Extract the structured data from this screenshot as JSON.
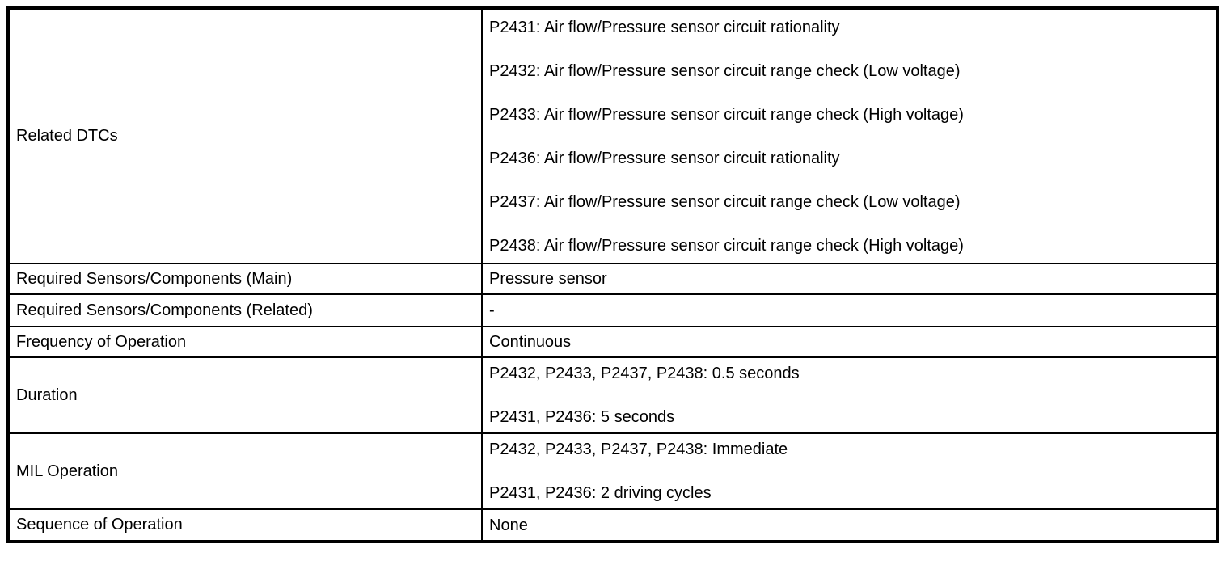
{
  "table": {
    "colors": {
      "border": "#000000",
      "background": "#ffffff",
      "text": "#000000"
    },
    "rows": [
      {
        "label": "Related DTCs",
        "values": [
          "P2431: Air flow/Pressure sensor circuit rationality",
          "P2432: Air flow/Pressure sensor circuit range check (Low voltage)",
          "P2433: Air flow/Pressure sensor circuit range check (High voltage)",
          "P2436: Air flow/Pressure sensor circuit rationality",
          "P2437: Air flow/Pressure sensor circuit range check (Low voltage)",
          "P2438: Air flow/Pressure sensor circuit range check (High voltage)"
        ]
      },
      {
        "label": "Required Sensors/Components (Main)",
        "values": [
          "Pressure sensor"
        ]
      },
      {
        "label": "Required Sensors/Components (Related)",
        "values": [
          "-"
        ]
      },
      {
        "label": "Frequency of Operation",
        "values": [
          "Continuous"
        ]
      },
      {
        "label": "Duration",
        "values": [
          "P2432, P2433, P2437, P2438: 0.5 seconds",
          "P2431, P2436: 5 seconds"
        ]
      },
      {
        "label": "MIL Operation",
        "values": [
          "P2432, P2433, P2437, P2438: Immediate",
          "P2431, P2436: 2 driving cycles"
        ]
      },
      {
        "label": "Sequence of Operation",
        "values": [
          "None"
        ]
      }
    ]
  }
}
